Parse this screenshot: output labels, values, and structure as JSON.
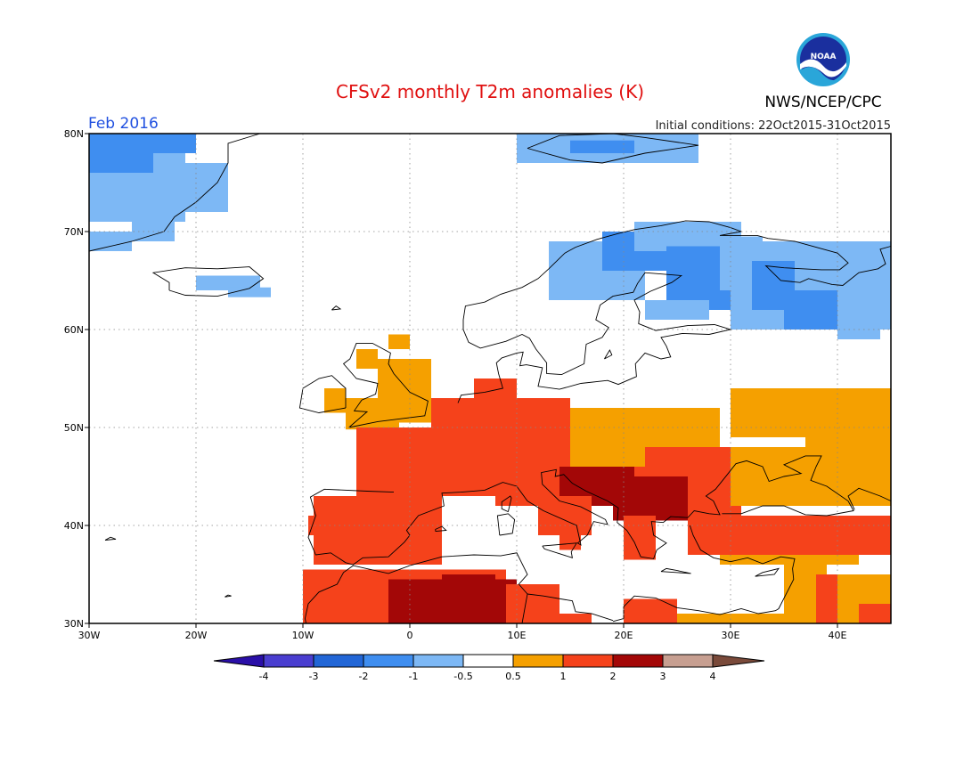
{
  "title": "CFSv2 monthly T2m anomalies (K)",
  "month": "Feb 2016",
  "initial_conditions": "Initial conditions: 22Oct2015-31Oct2015",
  "agency": "NWS/NCEP/CPC",
  "logo_text": "NOAA",
  "colors": {
    "title": "#e01010",
    "month": "#2050e0",
    "coast": "#000000",
    "grid": "#888888"
  },
  "map": {
    "lon_range": [
      -30,
      45
    ],
    "lat_range": [
      30,
      80
    ],
    "lat_labels": [
      "80N",
      "70N",
      "60N",
      "50N",
      "40N",
      "30N"
    ],
    "lon_labels": [
      "30W",
      "20W",
      "10W",
      "0",
      "10E",
      "20E",
      "30E",
      "40E"
    ]
  },
  "colorbar": {
    "boundaries": [
      "-4",
      "-3",
      "-2",
      "-1",
      "-0.5",
      "0.5",
      "1",
      "2",
      "3",
      "4"
    ],
    "colors": [
      "#2a0fa8",
      "#4a3ed0",
      "#2266d6",
      "#3f8ef0",
      "#7db8f5",
      "#ffffff",
      "#f5a000",
      "#f5421b",
      "#a30707",
      "#c79f91",
      "#7a4a3a"
    ]
  }
}
